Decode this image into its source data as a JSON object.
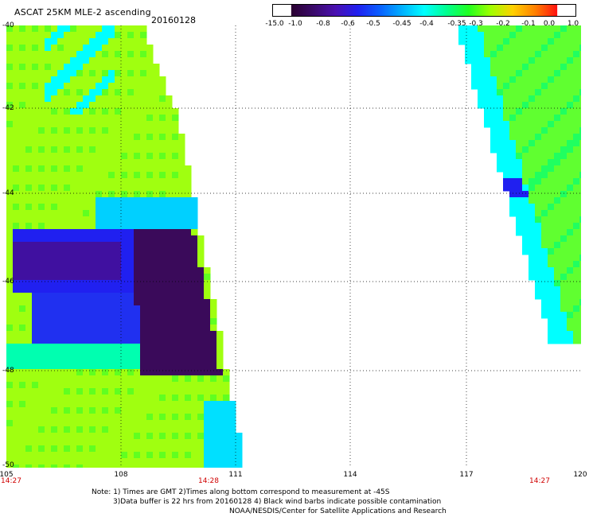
{
  "header": {
    "title": "ASCAT 25KM MLE-2 ascending",
    "date": "20160128"
  },
  "colorbar": {
    "labels": [
      "-15.0",
      "-1.0",
      "-0.8",
      "-0.6",
      "-0.5",
      "-0.45",
      "-0.4",
      "-0.35",
      "-0.3",
      "-0.2",
      "-0.1",
      "0.0",
      "1.0"
    ],
    "colors": [
      "#2a0030",
      "#3a0a6a",
      "#4a10b0",
      "#2020f0",
      "#0a60ff",
      "#00b0ff",
      "#00ffff",
      "#00ff90",
      "#20ff20",
      "#a0ff00",
      "#ffd000",
      "#ff8000",
      "#ff1010"
    ]
  },
  "map": {
    "lat_labels": [
      "-40",
      "-42",
      "-44",
      "-46",
      "-48",
      "-50"
    ],
    "lon_labels": [
      "105",
      "108",
      "111",
      "114",
      "117",
      "120"
    ],
    "time_labels": [
      "14:27",
      "14:28",
      "14:27"
    ],
    "lat_range": [
      -50,
      -40
    ],
    "lon_range": [
      105,
      120
    ]
  },
  "notes": {
    "line1": "Note: 1) Times are GMT 2)Times along bottom correspond to measurement at -45S",
    "line2": "3)Data buffer is 22 hrs from 20160128 4) Black wind barbs indicate possible contamination",
    "line3": "NOAA/NESDIS/Center for Satellite Applications and Research"
  }
}
